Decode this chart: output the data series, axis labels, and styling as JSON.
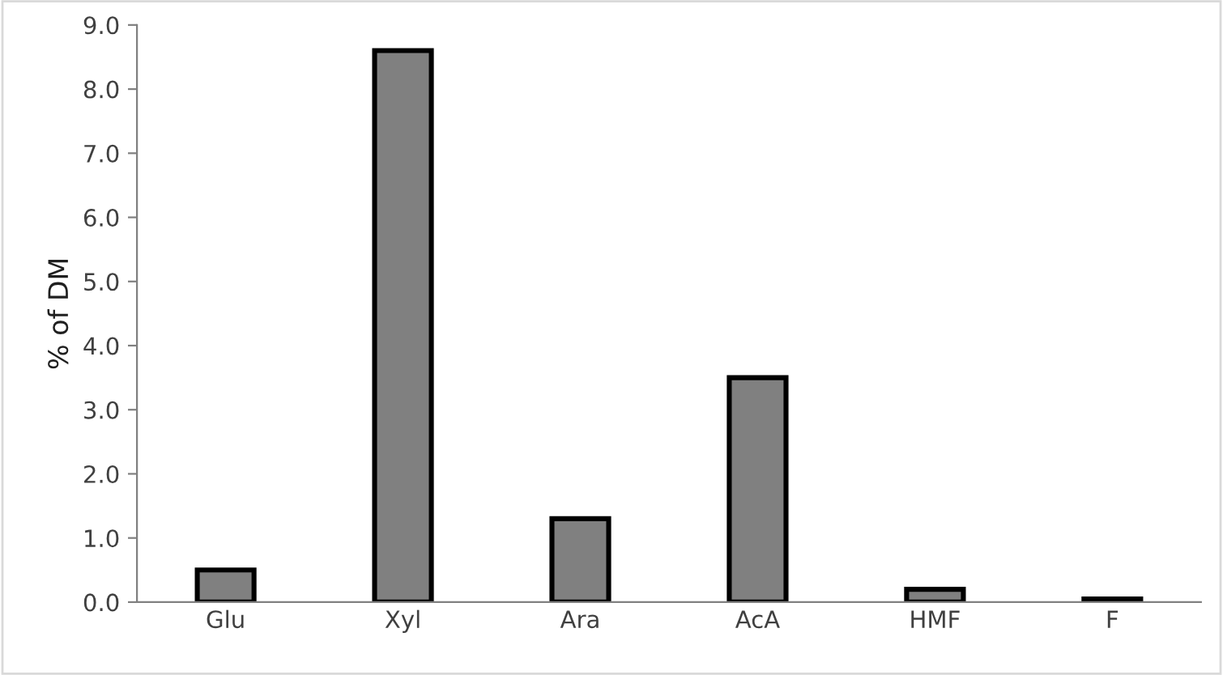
{
  "chart_data": {
    "type": "bar",
    "ylabel": "% of DM",
    "categories": [
      "Glu",
      "Xyl",
      "Ara",
      "AcA",
      "HMF",
      "F"
    ],
    "values": [
      0.5,
      8.6,
      1.3,
      3.5,
      0.2,
      0.05
    ],
    "color": "#808080",
    "ylim": [
      0,
      9
    ],
    "yticks": [
      {
        "value": 0,
        "label": "0.0"
      },
      {
        "value": 1,
        "label": "1.0"
      },
      {
        "value": 2,
        "label": "2.0"
      },
      {
        "value": 3,
        "label": "3.0"
      },
      {
        "value": 4,
        "label": "4.0"
      },
      {
        "value": 5,
        "label": "5.0"
      },
      {
        "value": 6,
        "label": "6.0"
      },
      {
        "value": 7,
        "label": "7.0"
      },
      {
        "value": 8,
        "label": "8.0"
      },
      {
        "value": 9,
        "label": "9.0"
      }
    ],
    "grid": false,
    "legend": false
  }
}
